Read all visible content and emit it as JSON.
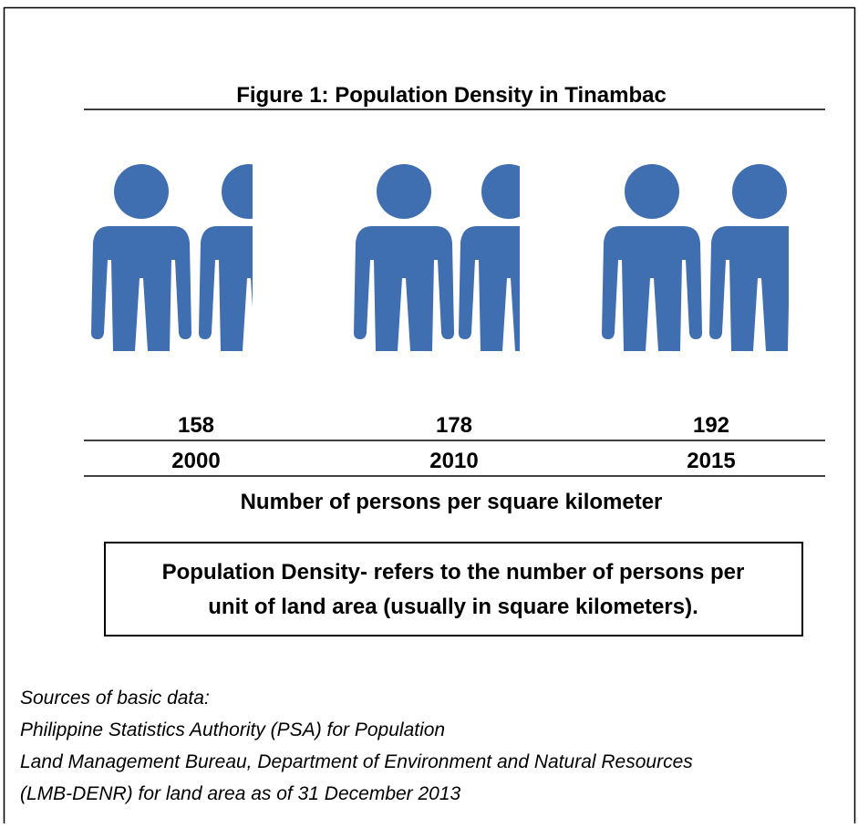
{
  "figure": {
    "title": "Figure 1: Population Density in Tinambac",
    "items": [
      {
        "value": 158,
        "year": "2000"
      },
      {
        "value": 178,
        "year": "2010"
      },
      {
        "value": 192,
        "year": "2015"
      }
    ],
    "caption": "Number of persons per square kilometer"
  },
  "definition": [
    "Population Density- refers to the number of persons per",
    "unit of land area (usually in square kilometers)."
  ],
  "sources": [
    "Sources of basic data:",
    "Philippine Statistics Authority (PSA) for Population",
    "Land Management Bureau, Department of Environment and Natural Resources",
    "(LMB-DENR) for land area as of 31 December 2013"
  ]
}
